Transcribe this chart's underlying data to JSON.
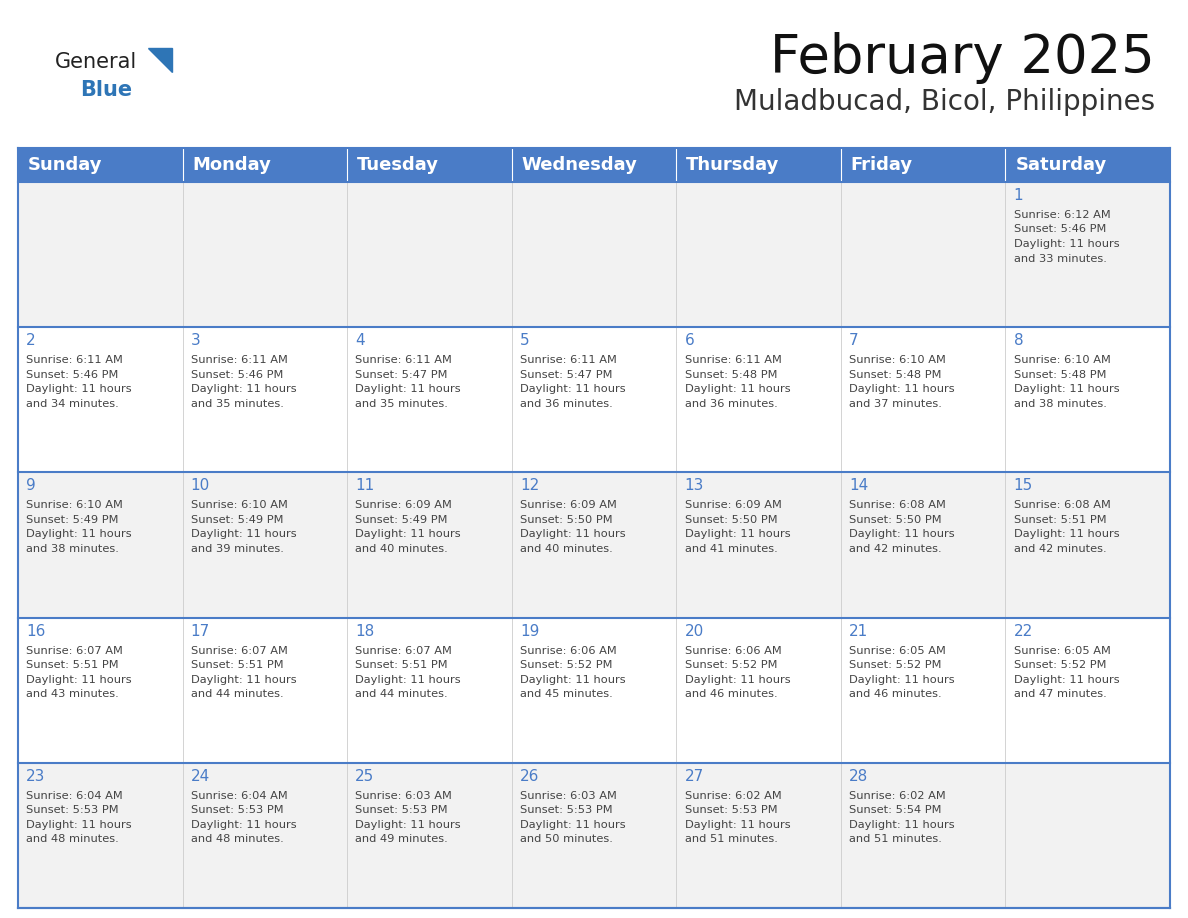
{
  "title": "February 2025",
  "subtitle": "Muladbucad, Bicol, Philippines",
  "header_bg": "#4A7CC7",
  "header_text_color": "#FFFFFF",
  "header_font_size": 13,
  "day_names": [
    "Sunday",
    "Monday",
    "Tuesday",
    "Wednesday",
    "Thursday",
    "Friday",
    "Saturday"
  ],
  "title_fontsize": 38,
  "subtitle_fontsize": 20,
  "cell_bg_odd": "#F2F2F2",
  "cell_bg_even": "#FFFFFF",
  "grid_line_color": "#4A7CC7",
  "day_number_color": "#4A7CC7",
  "text_color": "#444444",
  "logo_general_color": "#222222",
  "logo_blue_color": "#2E75B6",
  "weeks": [
    [
      {
        "day": null,
        "sunrise": null,
        "sunset": null,
        "daylight": null
      },
      {
        "day": null,
        "sunrise": null,
        "sunset": null,
        "daylight": null
      },
      {
        "day": null,
        "sunrise": null,
        "sunset": null,
        "daylight": null
      },
      {
        "day": null,
        "sunrise": null,
        "sunset": null,
        "daylight": null
      },
      {
        "day": null,
        "sunrise": null,
        "sunset": null,
        "daylight": null
      },
      {
        "day": null,
        "sunrise": null,
        "sunset": null,
        "daylight": null
      },
      {
        "day": 1,
        "sunrise": "6:12 AM",
        "sunset": "5:46 PM",
        "daylight": "11 hours\nand 33 minutes."
      }
    ],
    [
      {
        "day": 2,
        "sunrise": "6:11 AM",
        "sunset": "5:46 PM",
        "daylight": "11 hours\nand 34 minutes."
      },
      {
        "day": 3,
        "sunrise": "6:11 AM",
        "sunset": "5:46 PM",
        "daylight": "11 hours\nand 35 minutes."
      },
      {
        "day": 4,
        "sunrise": "6:11 AM",
        "sunset": "5:47 PM",
        "daylight": "11 hours\nand 35 minutes."
      },
      {
        "day": 5,
        "sunrise": "6:11 AM",
        "sunset": "5:47 PM",
        "daylight": "11 hours\nand 36 minutes."
      },
      {
        "day": 6,
        "sunrise": "6:11 AM",
        "sunset": "5:48 PM",
        "daylight": "11 hours\nand 36 minutes."
      },
      {
        "day": 7,
        "sunrise": "6:10 AM",
        "sunset": "5:48 PM",
        "daylight": "11 hours\nand 37 minutes."
      },
      {
        "day": 8,
        "sunrise": "6:10 AM",
        "sunset": "5:48 PM",
        "daylight": "11 hours\nand 38 minutes."
      }
    ],
    [
      {
        "day": 9,
        "sunrise": "6:10 AM",
        "sunset": "5:49 PM",
        "daylight": "11 hours\nand 38 minutes."
      },
      {
        "day": 10,
        "sunrise": "6:10 AM",
        "sunset": "5:49 PM",
        "daylight": "11 hours\nand 39 minutes."
      },
      {
        "day": 11,
        "sunrise": "6:09 AM",
        "sunset": "5:49 PM",
        "daylight": "11 hours\nand 40 minutes."
      },
      {
        "day": 12,
        "sunrise": "6:09 AM",
        "sunset": "5:50 PM",
        "daylight": "11 hours\nand 40 minutes."
      },
      {
        "day": 13,
        "sunrise": "6:09 AM",
        "sunset": "5:50 PM",
        "daylight": "11 hours\nand 41 minutes."
      },
      {
        "day": 14,
        "sunrise": "6:08 AM",
        "sunset": "5:50 PM",
        "daylight": "11 hours\nand 42 minutes."
      },
      {
        "day": 15,
        "sunrise": "6:08 AM",
        "sunset": "5:51 PM",
        "daylight": "11 hours\nand 42 minutes."
      }
    ],
    [
      {
        "day": 16,
        "sunrise": "6:07 AM",
        "sunset": "5:51 PM",
        "daylight": "11 hours\nand 43 minutes."
      },
      {
        "day": 17,
        "sunrise": "6:07 AM",
        "sunset": "5:51 PM",
        "daylight": "11 hours\nand 44 minutes."
      },
      {
        "day": 18,
        "sunrise": "6:07 AM",
        "sunset": "5:51 PM",
        "daylight": "11 hours\nand 44 minutes."
      },
      {
        "day": 19,
        "sunrise": "6:06 AM",
        "sunset": "5:52 PM",
        "daylight": "11 hours\nand 45 minutes."
      },
      {
        "day": 20,
        "sunrise": "6:06 AM",
        "sunset": "5:52 PM",
        "daylight": "11 hours\nand 46 minutes."
      },
      {
        "day": 21,
        "sunrise": "6:05 AM",
        "sunset": "5:52 PM",
        "daylight": "11 hours\nand 46 minutes."
      },
      {
        "day": 22,
        "sunrise": "6:05 AM",
        "sunset": "5:52 PM",
        "daylight": "11 hours\nand 47 minutes."
      }
    ],
    [
      {
        "day": 23,
        "sunrise": "6:04 AM",
        "sunset": "5:53 PM",
        "daylight": "11 hours\nand 48 minutes."
      },
      {
        "day": 24,
        "sunrise": "6:04 AM",
        "sunset": "5:53 PM",
        "daylight": "11 hours\nand 48 minutes."
      },
      {
        "day": 25,
        "sunrise": "6:03 AM",
        "sunset": "5:53 PM",
        "daylight": "11 hours\nand 49 minutes."
      },
      {
        "day": 26,
        "sunrise": "6:03 AM",
        "sunset": "5:53 PM",
        "daylight": "11 hours\nand 50 minutes."
      },
      {
        "day": 27,
        "sunrise": "6:02 AM",
        "sunset": "5:53 PM",
        "daylight": "11 hours\nand 51 minutes."
      },
      {
        "day": 28,
        "sunrise": "6:02 AM",
        "sunset": "5:54 PM",
        "daylight": "11 hours\nand 51 minutes."
      },
      {
        "day": null,
        "sunrise": null,
        "sunset": null,
        "daylight": null
      }
    ]
  ]
}
